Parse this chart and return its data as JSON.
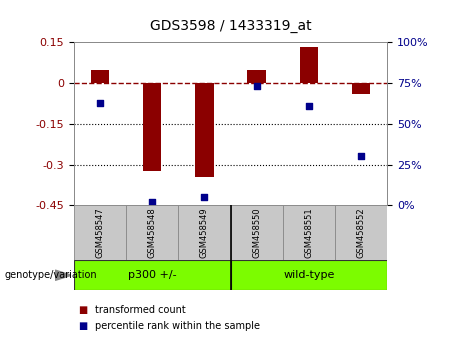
{
  "title": "GDS3598 / 1433319_at",
  "samples": [
    "GSM458547",
    "GSM458548",
    "GSM458549",
    "GSM458550",
    "GSM458551",
    "GSM458552"
  ],
  "bar_values": [
    0.05,
    -0.325,
    -0.345,
    0.05,
    0.135,
    -0.04
  ],
  "scatter_values_pct": [
    63,
    2,
    5,
    73,
    61,
    30
  ],
  "left_ylim": [
    -0.45,
    0.15
  ],
  "left_yticks": [
    -0.45,
    -0.3,
    -0.15,
    0.0,
    0.15
  ],
  "right_ylim": [
    0,
    100
  ],
  "right_yticks": [
    0,
    25,
    50,
    75,
    100
  ],
  "bar_color": "#8B0000",
  "scatter_color": "#00008B",
  "hline_y": 0.0,
  "dotted_hlines": [
    -0.15,
    -0.3
  ],
  "plot_bg_color": "#ffffff",
  "genotype_label": "genotype/variation",
  "group_p300_label": "p300 +/-",
  "group_wt_label": "wild-type",
  "group_color": "#7CFC00",
  "sample_box_color": "#C8C8C8",
  "legend_items": [
    {
      "label": "transformed count",
      "color": "#8B0000"
    },
    {
      "label": "percentile rank within the sample",
      "color": "#00008B"
    }
  ],
  "title_fontsize": 10,
  "tick_fontsize": 8,
  "sample_fontsize": 6,
  "group_fontsize": 8,
  "legend_fontsize": 7,
  "genotype_fontsize": 7,
  "bar_width": 0.35
}
